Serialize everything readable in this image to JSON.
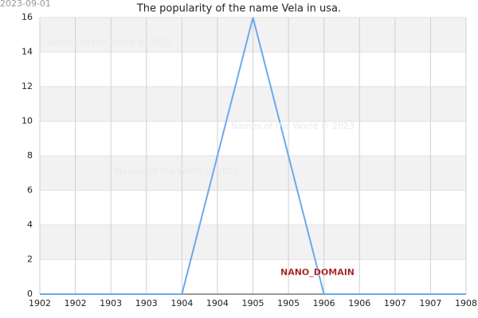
{
  "chart_data": {
    "type": "line",
    "title": "The popularity of the name Vela in usa.",
    "date": "2023-09-01",
    "watermark": "Names of the World © 2023",
    "annotation": "NANO_DOMAIN",
    "x": [
      1902,
      1903,
      1904,
      1905,
      1906,
      1907,
      1908
    ],
    "series": [
      {
        "color": "#6aaaec",
        "values": [
          0,
          0,
          0,
          16,
          0,
          0,
          0
        ]
      }
    ],
    "xlim": [
      1902,
      1908
    ],
    "xticks": [
      1902,
      {
        "value": 1902.5,
        "label": "1902"
      },
      1903,
      {
        "value": 1903.5,
        "label": "1903"
      },
      1904,
      {
        "value": 1904.5,
        "label": "1904"
      },
      1905,
      {
        "value": 1905.5,
        "label": "1905"
      },
      1906,
      {
        "value": 1906.5,
        "label": "1906"
      },
      1907,
      {
        "value": 1907.5,
        "label": "1907"
      },
      1908
    ],
    "ylim": [
      0,
      16
    ],
    "yticks": [
      0,
      2,
      4,
      6,
      8,
      10,
      12,
      14,
      16
    ],
    "grid": true
  }
}
